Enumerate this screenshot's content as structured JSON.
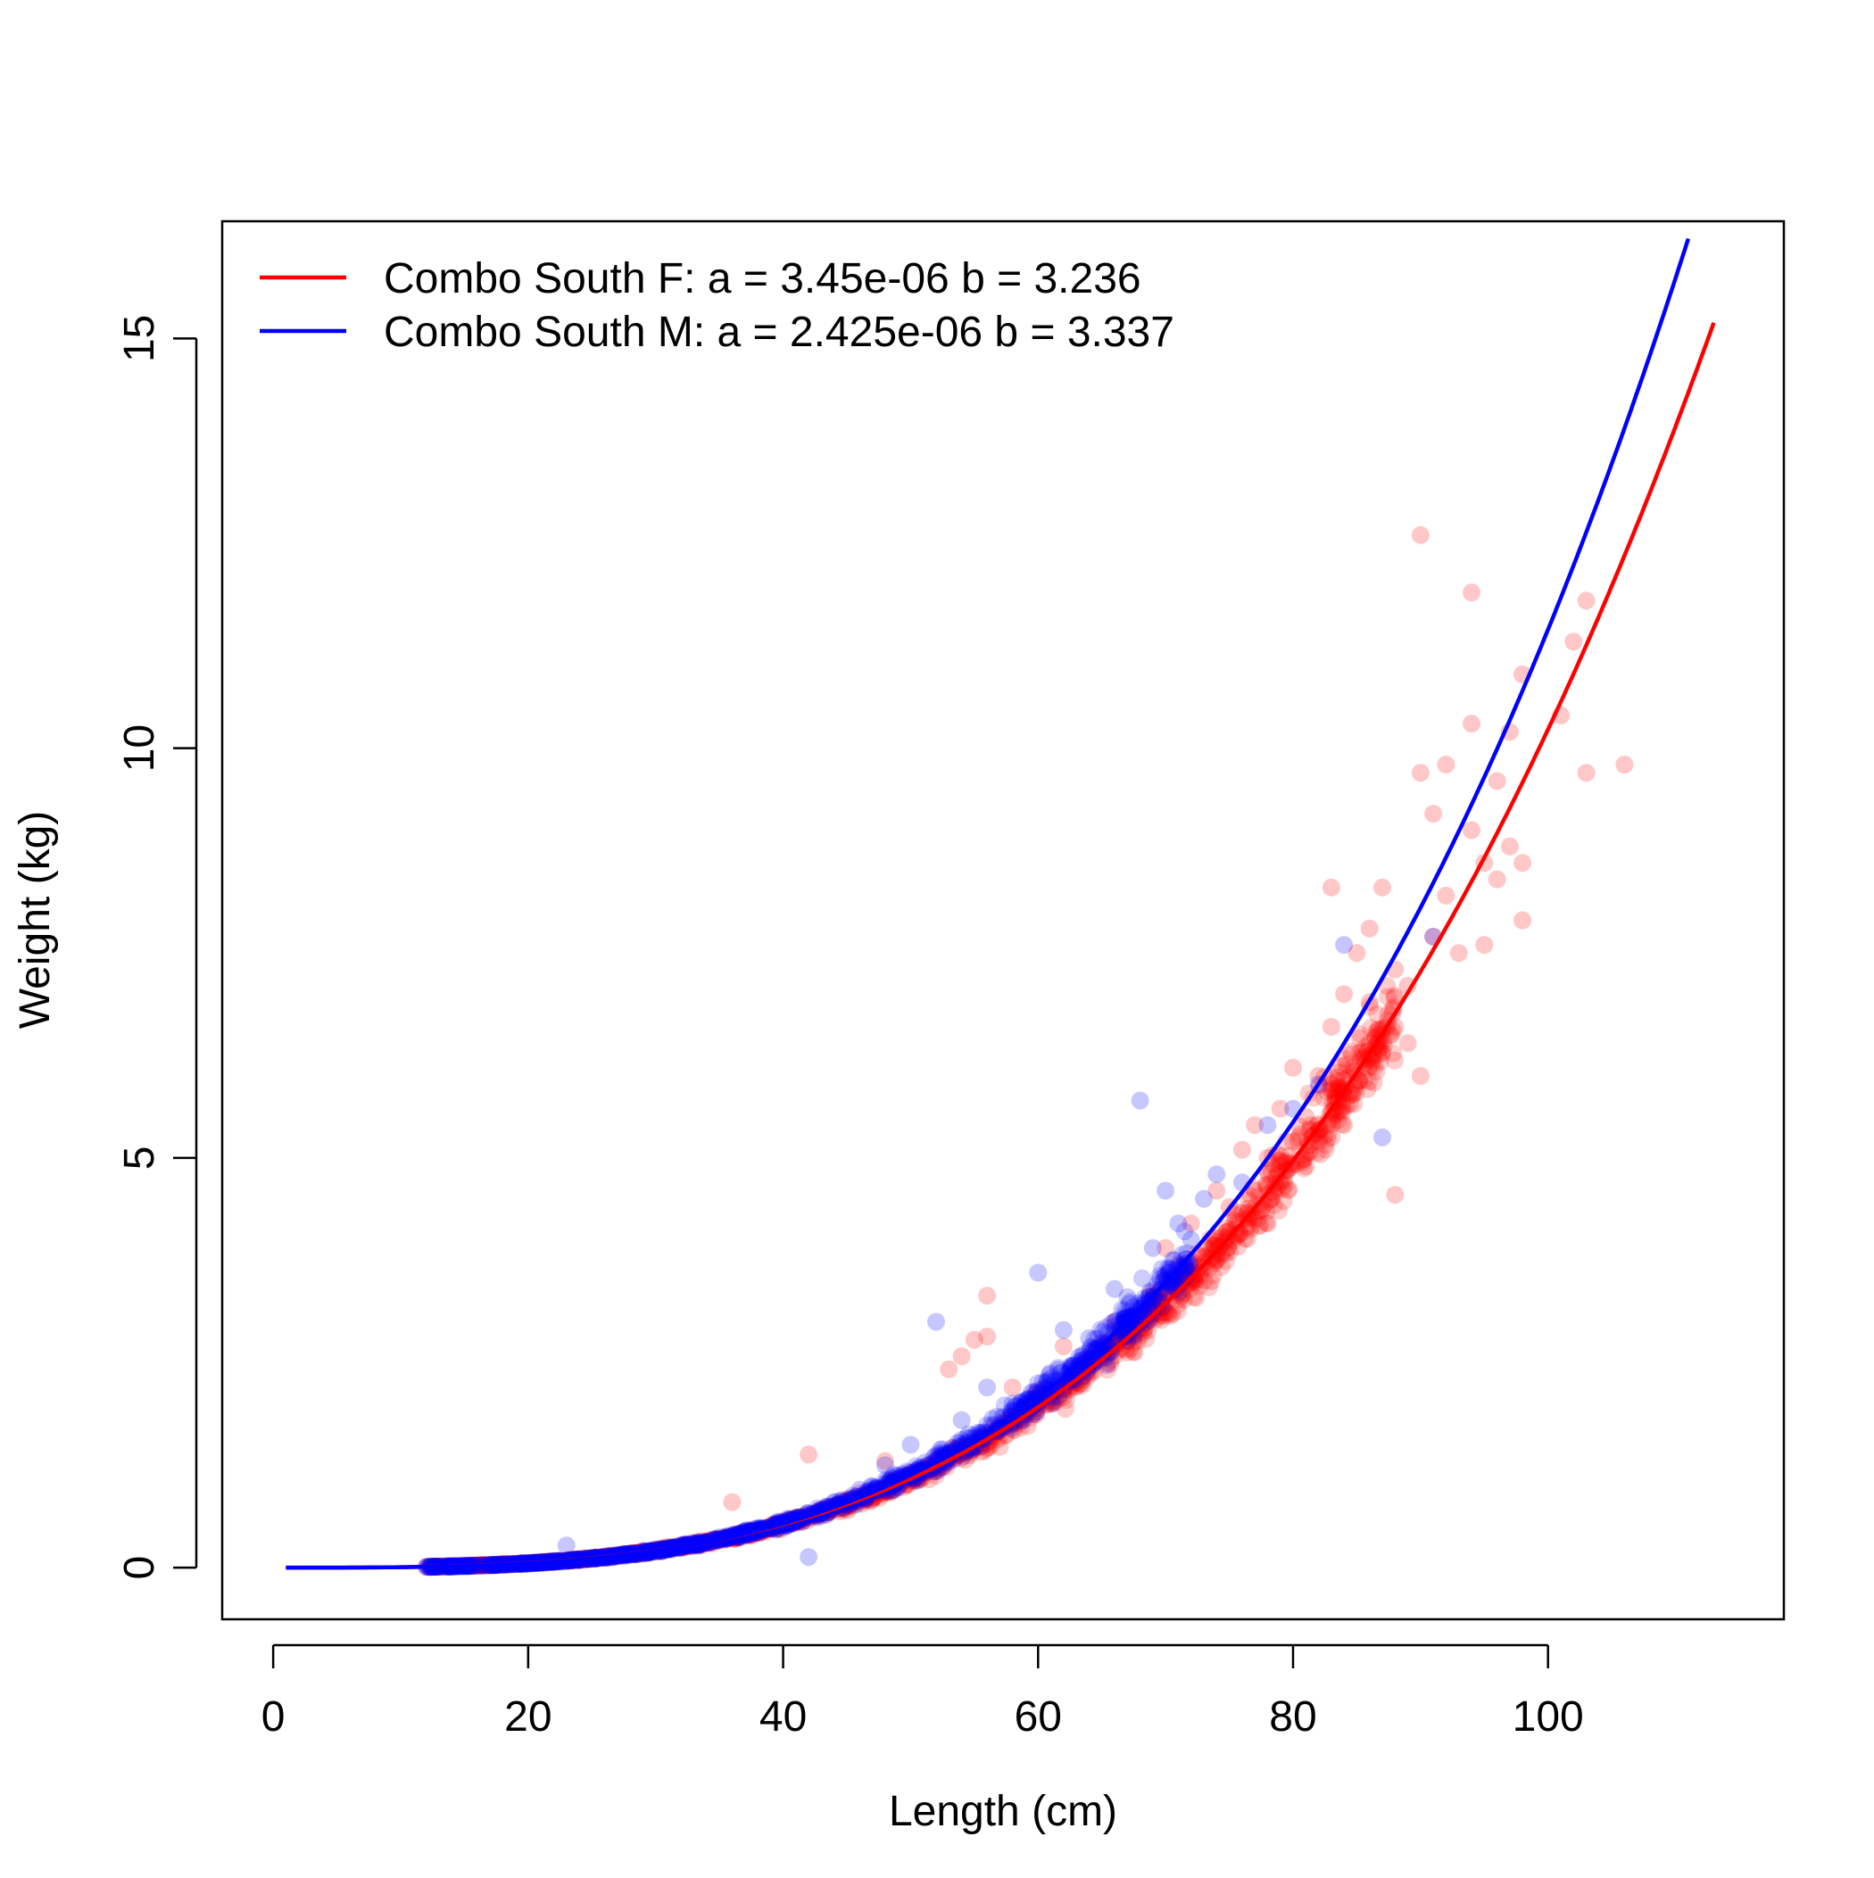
{
  "chart_data": {
    "type": "scatter",
    "title": "",
    "xlabel": "Length (cm)",
    "ylabel": "Weight (kg)",
    "xlim": [
      -4,
      118.5
    ],
    "ylim": [
      -0.63,
      16.43
    ],
    "x_ticks": [
      0,
      20,
      40,
      60,
      80,
      100
    ],
    "y_ticks": [
      0,
      5,
      10,
      15
    ],
    "x_tick_labels": [
      "0",
      "20",
      "40",
      "60",
      "80",
      "100"
    ],
    "y_tick_labels": [
      "0",
      "5",
      "10",
      "15"
    ],
    "grid": false,
    "legend_position": "top-left",
    "series": [
      {
        "name": "Combo South F: a = 3.45e-06 b = 3.236",
        "color": "#FF0000",
        "a": 3.45e-06,
        "b": 3.236,
        "curve_x_range": [
          1,
          113
        ],
        "points": [
          [
            42,
            1.38
          ],
          [
            53,
            2.42
          ],
          [
            54,
            2.58
          ],
          [
            55,
            2.78
          ],
          [
            56,
            2.82
          ],
          [
            56,
            3.32
          ],
          [
            36,
            0.8
          ],
          [
            48,
            1.3
          ],
          [
            58,
            2.2
          ],
          [
            62,
            2.7
          ],
          [
            66,
            3.0
          ],
          [
            68,
            3.1
          ],
          [
            70,
            3.9
          ],
          [
            72,
            4.2
          ],
          [
            74,
            4.6
          ],
          [
            75,
            4.1
          ],
          [
            76,
            5.1
          ],
          [
            77,
            5.4
          ],
          [
            78,
            5.0
          ],
          [
            79,
            5.6
          ],
          [
            80,
            5.2
          ],
          [
            80,
            6.1
          ],
          [
            81,
            4.9
          ],
          [
            82,
            6.0
          ],
          [
            83,
            8.3
          ],
          [
            83,
            6.6
          ],
          [
            84,
            7.0
          ],
          [
            84,
            5.4
          ],
          [
            85,
            7.5
          ],
          [
            86,
            7.8
          ],
          [
            86,
            6.9
          ],
          [
            87,
            6.3
          ],
          [
            87,
            8.3
          ],
          [
            88,
            4.55
          ],
          [
            88,
            6.6
          ],
          [
            89,
            7.1
          ],
          [
            89,
            6.4
          ],
          [
            90,
            12.6
          ],
          [
            90,
            9.7
          ],
          [
            90,
            6.0
          ],
          [
            91,
            9.2
          ],
          [
            91,
            7.7
          ],
          [
            92,
            9.8
          ],
          [
            92,
            8.2
          ],
          [
            93,
            7.5
          ],
          [
            94,
            11.9
          ],
          [
            94,
            10.3
          ],
          [
            94,
            9.0
          ],
          [
            95,
            8.6
          ],
          [
            95,
            7.6
          ],
          [
            96,
            9.6
          ],
          [
            96,
            8.4
          ],
          [
            97,
            10.2
          ],
          [
            97,
            8.8
          ],
          [
            98,
            10.9
          ],
          [
            98,
            7.9
          ],
          [
            98,
            8.6
          ],
          [
            101,
            10.4
          ],
          [
            102,
            11.3
          ],
          [
            103,
            11.8
          ],
          [
            103,
            9.7
          ],
          [
            106,
            9.8
          ],
          [
            64,
            2.4
          ],
          [
            65,
            2.6
          ],
          [
            67,
            2.9
          ],
          [
            69,
            3.3
          ],
          [
            71,
            3.6
          ],
          [
            73,
            3.8
          ],
          [
            75,
            4.4
          ],
          [
            77,
            4.6
          ],
          [
            78,
            4.2
          ],
          [
            79,
            4.9
          ],
          [
            81,
            5.5
          ],
          [
            82,
            5.2
          ],
          [
            83,
            5.9
          ],
          [
            85,
            6.0
          ],
          [
            86,
            6.4
          ],
          [
            88,
            7.3
          ]
        ]
      },
      {
        "name": "Combo South M: a = 2.425e-06 b = 3.337",
        "color": "#0000FF",
        "a": 2.425e-06,
        "b": 3.337,
        "curve_x_range": [
          1,
          111.2
        ],
        "points": [
          [
            23,
            0.27
          ],
          [
            42,
            0.13
          ],
          [
            52,
            3.0
          ],
          [
            60,
            3.6
          ],
          [
            68,
            5.7
          ],
          [
            70,
            4.6
          ],
          [
            84,
            7.6
          ],
          [
            87,
            5.25
          ],
          [
            91,
            7.7
          ],
          [
            48,
            1.25
          ],
          [
            54,
            1.8
          ],
          [
            56,
            2.2
          ],
          [
            58,
            2.0
          ],
          [
            62,
            2.9
          ],
          [
            64,
            2.8
          ],
          [
            66,
            3.4
          ],
          [
            67,
            3.3
          ],
          [
            69,
            3.9
          ],
          [
            71,
            4.2
          ],
          [
            72,
            4.0
          ],
          [
            73,
            4.5
          ],
          [
            74,
            4.8
          ],
          [
            76,
            4.7
          ],
          [
            78,
            5.4
          ],
          [
            80,
            5.6
          ],
          [
            82,
            5.9
          ],
          [
            46,
            0.95
          ],
          [
            50,
            1.5
          ],
          [
            44,
            0.8
          ],
          [
            40,
            0.55
          ]
        ]
      }
    ]
  }
}
